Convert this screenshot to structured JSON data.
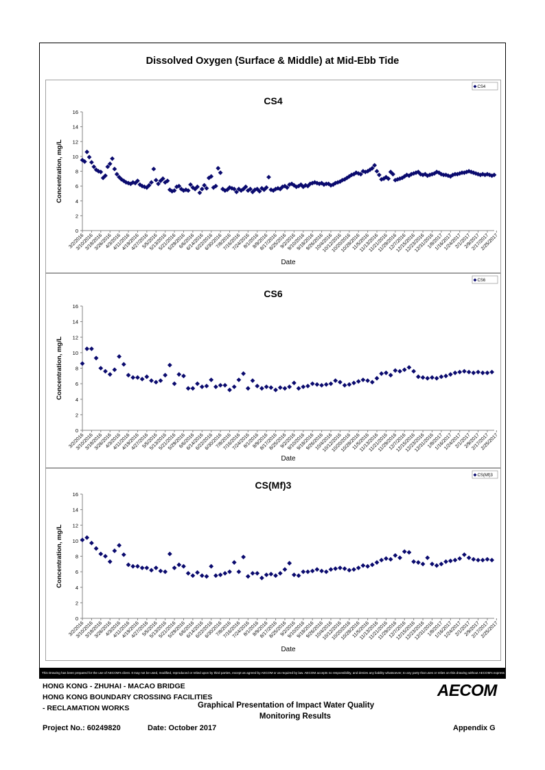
{
  "main_title": "Dissolved Oxygen (Surface & Middle) at Mid-Ebb Tide",
  "disclaimer": "This Drawing has been prepared for the use of AECOM's client. It may not be used, modified, reproduced or relied upon by third parties, except as agreed by AECOM or as required by law. AECOM accepts no responsibility, and denies any liability whatsoever, to any party that uses or relies on this drawing without AECOM's express written consent.",
  "footer": {
    "line1": "HONG KONG - ZHUHAI - MACAO BRIDGE",
    "line2": "HONG KONG BOUNDARY CROSSING FACILITIES",
    "line3": "- RECLAMATION WORKS",
    "project": "Project No.: 60249820",
    "date": "Date: October 2017",
    "heading_line1": "Graphical Presentation of Impact Water Quality",
    "heading_line2": "Monitoring Results",
    "appendix": "Appendix G",
    "logo_text": "AECOM"
  },
  "colors": {
    "marker": "#0a0a6e",
    "axis": "#808080",
    "panel_border": "#a0a0a0"
  },
  "chart_data": [
    {
      "type": "scatter",
      "title": "CS4",
      "xlabel": "Date",
      "ylabel": "Concentration, mg/L",
      "ylim": [
        0,
        16
      ],
      "yticks": [
        "0",
        "2",
        "4",
        "6",
        "8",
        "10",
        "12",
        "14",
        "16"
      ],
      "grid": false,
      "legend": "top-right",
      "marker": "diamond",
      "x_tick_labels": [
        "3/2/2016",
        "3/10/2016",
        "3/18/2016",
        "3/26/2016",
        "4/3/2016",
        "4/11/2016",
        "4/19/2016",
        "4/27/2016",
        "5/5/2016",
        "5/13/2016",
        "5/21/2016",
        "5/29/2016",
        "6/6/2016",
        "6/14/2016",
        "6/22/2016",
        "6/30/2016",
        "7/8/2016",
        "7/16/2016",
        "7/24/2016",
        "8/1/2016",
        "8/9/2016",
        "8/17/2016",
        "8/25/2016",
        "9/2/2016",
        "9/10/2016",
        "9/18/2016",
        "9/26/2016",
        "10/4/2016",
        "10/12/2016",
        "10/20/2016",
        "10/28/2016",
        "11/5/2016",
        "11/13/2016",
        "11/21/2016",
        "11/29/2016",
        "12/7/2016",
        "12/15/2016",
        "12/23/2016",
        "12/31/2016",
        "1/8/2017",
        "1/16/2017",
        "1/24/2017",
        "2/1/2017",
        "2/9/2017",
        "2/17/2017",
        "2/25/2017"
      ],
      "series": [
        {
          "name": "CS4",
          "x": [
            0,
            1,
            2,
            3,
            4,
            5,
            6,
            7,
            8,
            9,
            10,
            11,
            12,
            13,
            14,
            15,
            16,
            17,
            18,
            19,
            20,
            21,
            22,
            23,
            24,
            25,
            26,
            27,
            28,
            29,
            30,
            31,
            32,
            33,
            34,
            35,
            36,
            37,
            38,
            39,
            40,
            41,
            42,
            43,
            44,
            45,
            46,
            47,
            48,
            49,
            50,
            51,
            52,
            53,
            54,
            55,
            56,
            57,
            58,
            59,
            60,
            61,
            62,
            63,
            64,
            65,
            66,
            67,
            68,
            69,
            70,
            71,
            72,
            73,
            74,
            75,
            76,
            77,
            78,
            79,
            80,
            81,
            82,
            83,
            84,
            85,
            86,
            87,
            88,
            89,
            90,
            91,
            92,
            93,
            94,
            95,
            96,
            97,
            98,
            99,
            100,
            101,
            102,
            103,
            104,
            105,
            106,
            107,
            108,
            109,
            110,
            111,
            112,
            113,
            114,
            115,
            116,
            117,
            118,
            119,
            120,
            121,
            122,
            123,
            124,
            125,
            126,
            127,
            128,
            129,
            130,
            131,
            132,
            133,
            134,
            135,
            136,
            137,
            138,
            139,
            140,
            141,
            142,
            143,
            144,
            145,
            146,
            147,
            148,
            149,
            150,
            151,
            152,
            153,
            154,
            155,
            156,
            157,
            158,
            159,
            160,
            161,
            162,
            163,
            164,
            165,
            166,
            167,
            168,
            169,
            170,
            171,
            172,
            173,
            174,
            175,
            176,
            177,
            178,
            179
          ],
          "values": [
            9.5,
            9.3,
            10.6,
            9.9,
            9.2,
            8.6,
            8.2,
            8.0,
            7.9,
            7.1,
            7.4,
            8.6,
            9.0,
            9.7,
            8.3,
            7.6,
            7.2,
            6.9,
            6.7,
            6.5,
            6.4,
            6.3,
            6.5,
            6.4,
            6.7,
            6.2,
            6.0,
            5.9,
            5.8,
            6.1,
            6.5,
            8.3,
            6.8,
            6.3,
            6.7,
            7.0,
            6.5,
            6.7,
            5.5,
            5.3,
            5.4,
            5.9,
            6.0,
            5.6,
            5.4,
            5.5,
            5.4,
            6.2,
            5.8,
            5.6,
            5.9,
            5.1,
            5.6,
            6.1,
            5.7,
            7.1,
            7.3,
            5.8,
            6.0,
            8.4,
            7.8,
            5.6,
            5.4,
            5.5,
            5.8,
            5.7,
            5.6,
            5.2,
            5.6,
            5.4,
            5.6,
            5.9,
            5.4,
            5.6,
            5.2,
            5.5,
            5.6,
            5.3,
            5.7,
            5.5,
            5.8,
            7.2,
            5.5,
            5.4,
            5.6,
            5.7,
            5.6,
            5.9,
            6.0,
            5.8,
            6.2,
            6.3,
            6.1,
            5.9,
            6.0,
            6.2,
            5.9,
            6.1,
            6.0,
            6.3,
            6.4,
            6.5,
            6.4,
            6.3,
            6.4,
            6.2,
            6.3,
            6.3,
            6.1,
            6.2,
            6.4,
            6.5,
            6.6,
            6.8,
            6.9,
            7.1,
            7.3,
            7.5,
            7.6,
            7.8,
            7.7,
            7.6,
            8.0,
            7.9,
            8.0,
            8.2,
            8.4,
            8.8,
            8.0,
            7.5,
            6.9,
            7.0,
            7.2,
            7.0,
            7.9,
            7.6,
            6.8,
            6.9,
            7.0,
            7.1,
            7.3,
            7.5,
            7.4,
            7.6,
            7.7,
            7.8,
            7.9,
            7.6,
            7.5,
            7.6,
            7.4,
            7.5,
            7.6,
            7.7,
            7.9,
            7.8,
            7.6,
            7.5,
            7.5,
            7.4,
            7.3,
            7.5,
            7.6,
            7.6,
            7.7,
            7.8,
            7.8,
            7.9,
            8.0,
            7.9,
            7.8,
            7.7,
            7.6,
            7.5,
            7.6,
            7.5,
            7.6,
            7.5,
            7.4,
            7.5
          ]
        }
      ]
    },
    {
      "type": "scatter",
      "title": "CS6",
      "xlabel": "Date",
      "ylabel": "Concentration, mg/L",
      "ylim": [
        0,
        16
      ],
      "yticks": [
        "0",
        "2",
        "4",
        "6",
        "8",
        "10",
        "12",
        "14",
        "16"
      ],
      "grid": false,
      "legend": "top-right",
      "marker": "diamond",
      "x_tick_labels": [
        "3/2/2016",
        "3/10/2016",
        "3/18/2016",
        "3/26/2016",
        "4/3/2016",
        "4/11/2016",
        "4/19/2016",
        "4/27/2016",
        "5/5/2016",
        "5/13/2016",
        "5/21/2016",
        "5/29/2016",
        "6/6/2016",
        "6/14/2016",
        "6/22/2016",
        "6/30/2016",
        "7/8/2016",
        "7/16/2016",
        "7/24/2016",
        "8/1/2016",
        "8/9/2016",
        "8/17/2016",
        "8/25/2016",
        "9/2/2016",
        "9/10/2016",
        "9/18/2016",
        "9/26/2016",
        "10/4/2016",
        "10/12/2016",
        "10/20/2016",
        "10/28/2016",
        "11/5/2016",
        "11/13/2016",
        "11/21/2016",
        "11/29/2016",
        "12/7/2016",
        "12/15/2016",
        "12/23/2016",
        "12/31/2016",
        "1/8/2017",
        "1/16/2017",
        "1/24/2017",
        "2/1/2017",
        "2/9/2017",
        "2/17/2017",
        "2/25/2017"
      ],
      "series": [
        {
          "name": "CS6",
          "x": [
            0,
            2,
            4,
            6,
            8,
            10,
            12,
            14,
            16,
            18,
            20,
            22,
            24,
            26,
            28,
            30,
            32,
            34,
            36,
            38,
            40,
            42,
            44,
            46,
            48,
            50,
            52,
            54,
            56,
            58,
            60,
            62,
            64,
            66,
            68,
            70,
            72,
            74,
            76,
            78,
            80,
            82,
            84,
            86,
            88,
            90,
            92,
            94,
            96,
            98,
            100,
            102,
            104,
            106,
            108,
            110,
            112,
            114,
            116,
            118,
            120,
            122,
            124,
            126,
            128,
            130,
            132,
            134,
            136,
            138,
            140,
            142,
            144,
            146,
            148,
            150,
            152,
            154,
            156,
            158,
            160,
            162,
            164,
            166,
            168,
            170,
            172,
            174,
            176,
            178
          ],
          "values": [
            8.6,
            10.5,
            10.5,
            9.3,
            8.0,
            7.6,
            7.2,
            7.8,
            9.5,
            8.5,
            7.1,
            6.8,
            6.8,
            6.6,
            6.9,
            6.4,
            6.2,
            6.4,
            7.1,
            8.4,
            6.0,
            7.2,
            7.0,
            5.4,
            5.4,
            6.0,
            5.6,
            5.7,
            6.5,
            5.6,
            5.8,
            5.8,
            5.2,
            5.6,
            6.5,
            7.3,
            5.4,
            6.4,
            5.7,
            5.4,
            5.6,
            5.5,
            5.2,
            5.5,
            5.4,
            5.6,
            6.1,
            5.4,
            5.6,
            5.7,
            6.0,
            5.9,
            5.8,
            5.9,
            6.0,
            6.4,
            6.2,
            5.8,
            5.9,
            6.1,
            6.3,
            6.5,
            6.4,
            6.2,
            6.7,
            7.3,
            7.4,
            7.1,
            7.7,
            7.6,
            7.8,
            8.1,
            7.6,
            6.9,
            6.8,
            6.7,
            6.8,
            6.7,
            6.9,
            7.0,
            7.2,
            7.4,
            7.5,
            7.6,
            7.5,
            7.4,
            7.5,
            7.4,
            7.4,
            7.5
          ]
        }
      ]
    },
    {
      "type": "scatter",
      "title": "CS(Mf)3",
      "xlabel": "Date",
      "ylabel": "Concentration, mg/L",
      "ylim": [
        0,
        16
      ],
      "yticks": [
        "0",
        "2",
        "4",
        "6",
        "8",
        "10",
        "12",
        "14",
        "16"
      ],
      "grid": false,
      "legend": "top-right",
      "marker": "diamond",
      "x_tick_labels": [
        "3/2/2016",
        "3/10/2016",
        "3/18/2016",
        "3/26/2016",
        "4/3/2016",
        "4/11/2016",
        "4/19/2016",
        "4/27/2016",
        "5/5/2016",
        "5/13/2016",
        "5/21/2016",
        "5/29/2016",
        "6/6/2016",
        "6/14/2016",
        "6/22/2016",
        "6/30/2016",
        "7/8/2016",
        "7/16/2016",
        "7/24/2016",
        "8/1/2016",
        "8/9/2016",
        "8/17/2016",
        "8/25/2016",
        "9/2/2016",
        "9/10/2016",
        "9/18/2016",
        "9/26/2016",
        "10/4/2016",
        "10/12/2016",
        "10/20/2016",
        "10/28/2016",
        "11/5/2016",
        "11/13/2016",
        "11/21/2016",
        "11/29/2016",
        "12/7/2016",
        "12/15/2016",
        "12/23/2016",
        "12/31/2016",
        "1/8/2017",
        "1/16/2017",
        "1/24/2017",
        "2/1/2017",
        "2/9/2017",
        "2/17/2017",
        "2/25/2017"
      ],
      "series": [
        {
          "name": "CS(Mf)3",
          "x": [
            0,
            2,
            4,
            6,
            8,
            10,
            12,
            14,
            16,
            18,
            20,
            22,
            24,
            26,
            28,
            30,
            32,
            34,
            36,
            38,
            40,
            42,
            44,
            46,
            48,
            50,
            52,
            54,
            56,
            58,
            60,
            62,
            64,
            66,
            68,
            70,
            72,
            74,
            76,
            78,
            80,
            82,
            84,
            86,
            88,
            90,
            92,
            94,
            96,
            98,
            100,
            102,
            104,
            106,
            108,
            110,
            112,
            114,
            116,
            118,
            120,
            122,
            124,
            126,
            128,
            130,
            132,
            134,
            136,
            138,
            140,
            142,
            144,
            146,
            148,
            150,
            152,
            154,
            156,
            158,
            160,
            162,
            164,
            166,
            168,
            170,
            172,
            174,
            176,
            178
          ],
          "values": [
            10.1,
            10.4,
            9.7,
            9.0,
            8.3,
            8.0,
            7.3,
            8.7,
            9.4,
            8.2,
            6.9,
            6.7,
            6.7,
            6.5,
            6.5,
            6.2,
            6.5,
            6.1,
            6.0,
            8.3,
            6.5,
            6.9,
            6.7,
            5.8,
            5.5,
            5.9,
            5.5,
            5.4,
            6.7,
            5.5,
            5.6,
            5.8,
            6.0,
            7.2,
            6.0,
            7.9,
            5.4,
            5.8,
            5.8,
            5.2,
            5.6,
            5.7,
            5.5,
            5.8,
            6.3,
            7.1,
            5.6,
            5.5,
            6.0,
            6.0,
            6.1,
            6.3,
            6.1,
            6.0,
            6.3,
            6.4,
            6.5,
            6.4,
            6.2,
            6.3,
            6.5,
            6.8,
            6.7,
            6.9,
            7.2,
            7.5,
            7.7,
            7.6,
            8.1,
            7.8,
            8.6,
            8.5,
            7.3,
            7.2,
            7.0,
            7.8,
            7.0,
            6.8,
            7.0,
            7.3,
            7.4,
            7.5,
            7.7,
            8.2,
            7.8,
            7.6,
            7.5,
            7.5,
            7.6,
            7.5
          ]
        }
      ]
    }
  ]
}
